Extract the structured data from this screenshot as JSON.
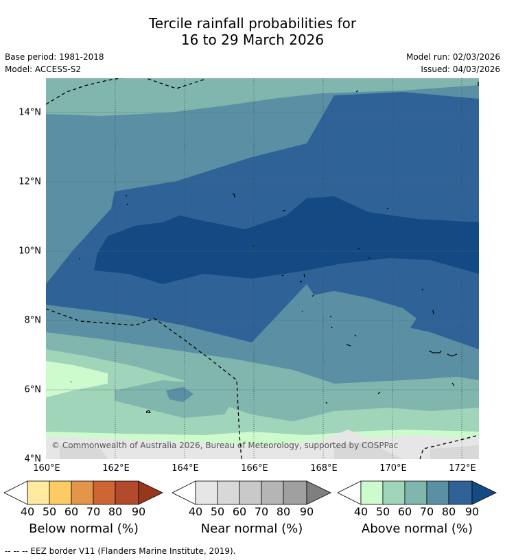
{
  "title_line1": "Tercile rainfall probabilities for",
  "title_line2": "16 to 29 March 2026",
  "base_period": "Base period: 1981-2018",
  "model": "Model: ACCESS-S2",
  "model_run": "Model run: 02/03/2026",
  "issued": "Issued: 04/03/2026",
  "copyright": "© Commonwealth of Australia 2026, Bureau of Meteorology, supported by COSPPac",
  "lat_labels": [
    "14°N",
    "12°N",
    "10°N",
    "8°N",
    "6°N",
    "4°N"
  ],
  "lon_labels": [
    "160°E",
    "162°E",
    "164°E",
    "166°E",
    "168°E",
    "170°E",
    "172°E"
  ],
  "legends": [
    {
      "name": "Below normal (%)",
      "ticks": [
        "40",
        "50",
        "60",
        "70",
        "80",
        "90"
      ],
      "colors": [
        "#fdeaa0",
        "#fccb63",
        "#e3954a",
        "#cf6533",
        "#b24a2c",
        "#97381c"
      ]
    },
    {
      "name": "Near normal (%)",
      "ticks": [
        "40",
        "50",
        "60",
        "70",
        "80",
        "90"
      ],
      "colors": [
        "#e6e6e6",
        "#d8d8d8",
        "#c9c9c9",
        "#b5b5b5",
        "#a0a0a0",
        "#7f7f7f"
      ]
    },
    {
      "name": "Above normal (%)",
      "ticks": [
        "40",
        "50",
        "60",
        "70",
        "80",
        "90"
      ],
      "colors": [
        "#cdfbcd",
        "#a1d5b9",
        "#80b6ad",
        "#5a8fa4",
        "#2f6297",
        "#134a84"
      ]
    }
  ],
  "footer": "--  --  -- EEZ border V11 (Flanders Marine Institute, 2019)."
}
